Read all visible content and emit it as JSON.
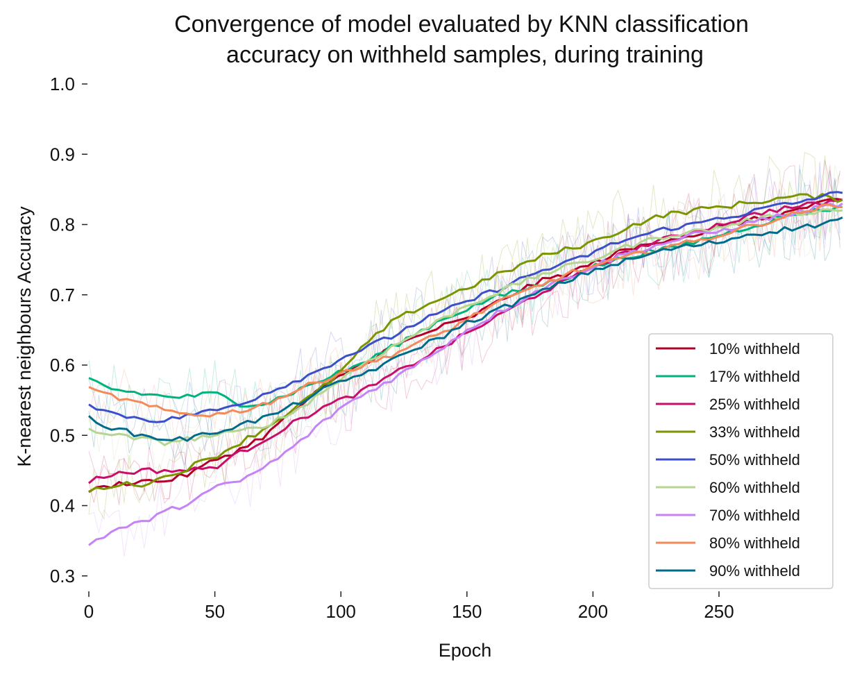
{
  "chart_data": {
    "type": "line",
    "title": "Convergence of model evaluated by KNN classification",
    "subtitle": "accuracy on withheld samples, during training",
    "xlabel": "Epoch",
    "ylabel": "K-nearest neighbours Accuracy",
    "xlim": [
      0,
      299
    ],
    "ylim": [
      0.28,
      1.0
    ],
    "xticks": [
      0,
      50,
      100,
      150,
      200,
      250
    ],
    "xtick_labels": [
      "0",
      "50",
      "100",
      "150",
      "200",
      "250"
    ],
    "yticks": [
      0.3,
      0.4,
      0.5,
      0.6,
      0.7,
      0.8,
      0.9,
      1.0
    ],
    "ytick_labels": [
      "0.3",
      "0.4",
      "0.5",
      "0.6",
      "0.7",
      "0.8",
      "0.9",
      "1.0"
    ],
    "grid": false,
    "legend_position": "bottom-right",
    "x_knots": [
      0,
      10,
      20,
      30,
      40,
      50,
      60,
      70,
      80,
      90,
      100,
      110,
      120,
      130,
      140,
      150,
      160,
      170,
      180,
      190,
      200,
      210,
      220,
      230,
      240,
      250,
      260,
      270,
      280,
      290,
      299
    ],
    "series": [
      {
        "name": "10% withheld",
        "color": "#b2002a",
        "values": [
          0.42,
          0.43,
          0.435,
          0.435,
          0.445,
          0.465,
          0.48,
          0.5,
          0.53,
          0.56,
          0.585,
          0.605,
          0.625,
          0.64,
          0.655,
          0.665,
          0.685,
          0.705,
          0.72,
          0.73,
          0.745,
          0.76,
          0.77,
          0.78,
          0.785,
          0.795,
          0.805,
          0.81,
          0.82,
          0.83,
          0.835
        ]
      },
      {
        "name": "17% withheld",
        "color": "#00b37d",
        "values": [
          0.58,
          0.565,
          0.56,
          0.555,
          0.555,
          0.56,
          0.545,
          0.545,
          0.56,
          0.575,
          0.59,
          0.605,
          0.625,
          0.645,
          0.665,
          0.68,
          0.695,
          0.705,
          0.715,
          0.725,
          0.74,
          0.75,
          0.76,
          0.765,
          0.775,
          0.785,
          0.795,
          0.805,
          0.815,
          0.82,
          0.825
        ]
      },
      {
        "name": "25% withheld",
        "color": "#c90e6a",
        "values": [
          0.435,
          0.445,
          0.45,
          0.45,
          0.45,
          0.455,
          0.475,
          0.495,
          0.515,
          0.535,
          0.55,
          0.565,
          0.585,
          0.605,
          0.625,
          0.645,
          0.665,
          0.685,
          0.705,
          0.72,
          0.74,
          0.755,
          0.77,
          0.78,
          0.79,
          0.8,
          0.81,
          0.82,
          0.825,
          0.83,
          0.835
        ]
      },
      {
        "name": "33% withheld",
        "color": "#7a9500",
        "values": [
          0.42,
          0.43,
          0.43,
          0.44,
          0.455,
          0.47,
          0.49,
          0.51,
          0.535,
          0.56,
          0.59,
          0.63,
          0.66,
          0.68,
          0.695,
          0.71,
          0.725,
          0.74,
          0.755,
          0.765,
          0.775,
          0.79,
          0.805,
          0.815,
          0.82,
          0.825,
          0.83,
          0.835,
          0.84,
          0.84,
          0.835
        ]
      },
      {
        "name": "50% withheld",
        "color": "#3a4fc9",
        "values": [
          0.545,
          0.53,
          0.525,
          0.52,
          0.53,
          0.535,
          0.545,
          0.56,
          0.575,
          0.59,
          0.61,
          0.625,
          0.64,
          0.66,
          0.675,
          0.69,
          0.705,
          0.72,
          0.735,
          0.745,
          0.76,
          0.775,
          0.785,
          0.795,
          0.8,
          0.81,
          0.815,
          0.825,
          0.83,
          0.84,
          0.845
        ]
      },
      {
        "name": "60% withheld",
        "color": "#b5d691",
        "values": [
          0.51,
          0.5,
          0.495,
          0.49,
          0.495,
          0.5,
          0.505,
          0.515,
          0.53,
          0.555,
          0.58,
          0.605,
          0.625,
          0.645,
          0.665,
          0.685,
          0.7,
          0.715,
          0.73,
          0.74,
          0.75,
          0.765,
          0.775,
          0.785,
          0.79,
          0.795,
          0.805,
          0.81,
          0.815,
          0.82,
          0.82
        ]
      },
      {
        "name": "70% withheld",
        "color": "#c583f5",
        "values": [
          0.345,
          0.365,
          0.375,
          0.39,
          0.405,
          0.425,
          0.435,
          0.455,
          0.48,
          0.51,
          0.54,
          0.56,
          0.58,
          0.6,
          0.625,
          0.65,
          0.67,
          0.69,
          0.71,
          0.725,
          0.74,
          0.755,
          0.765,
          0.775,
          0.785,
          0.79,
          0.8,
          0.81,
          0.815,
          0.825,
          0.83
        ]
      },
      {
        "name": "80% withheld",
        "color": "#f28a5a",
        "values": [
          0.565,
          0.555,
          0.545,
          0.535,
          0.53,
          0.53,
          0.535,
          0.545,
          0.56,
          0.575,
          0.59,
          0.6,
          0.615,
          0.63,
          0.645,
          0.665,
          0.685,
          0.7,
          0.715,
          0.73,
          0.74,
          0.75,
          0.76,
          0.77,
          0.775,
          0.785,
          0.795,
          0.805,
          0.815,
          0.825,
          0.825
        ]
      },
      {
        "name": "90% withheld",
        "color": "#006b8a",
        "values": [
          0.525,
          0.51,
          0.5,
          0.495,
          0.495,
          0.505,
          0.515,
          0.525,
          0.54,
          0.56,
          0.575,
          0.59,
          0.605,
          0.625,
          0.64,
          0.66,
          0.675,
          0.69,
          0.705,
          0.72,
          0.735,
          0.745,
          0.755,
          0.765,
          0.77,
          0.775,
          0.785,
          0.79,
          0.795,
          0.8,
          0.81
        ]
      }
    ]
  }
}
